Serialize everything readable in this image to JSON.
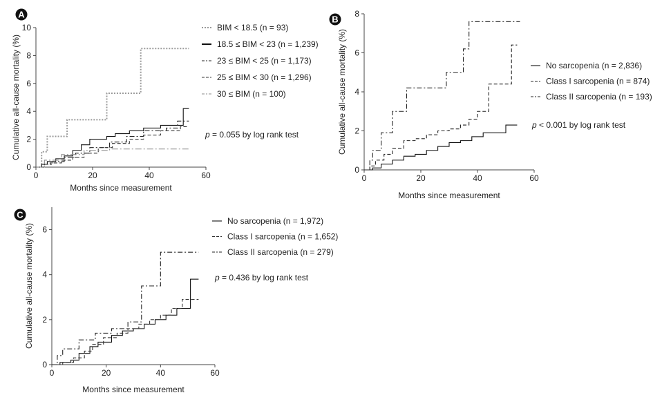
{
  "chart_data": [
    {
      "panel": "A",
      "type": "line",
      "subtype": "step (Kaplan-Meier cumulative incidence)",
      "xlabel": "Months since measurement",
      "ylabel": "Cumulative all-cause mortality (%)",
      "xlim": [
        0,
        60
      ],
      "ylim": [
        0,
        10
      ],
      "xticks": [
        0,
        20,
        40,
        60
      ],
      "yticks": [
        0,
        2,
        4,
        6,
        8,
        10
      ],
      "annotation": {
        "italic": "p",
        "text": " = 0.055 by log rank test"
      },
      "series": [
        {
          "name": "BIM < 18.5 (n = 93)",
          "style": "dotted",
          "color": "#9a9a9a",
          "x": [
            0,
            2,
            4,
            11,
            25,
            37,
            54
          ],
          "y": [
            0,
            1.1,
            2.2,
            3.4,
            5.3,
            8.5,
            8.5
          ]
        },
        {
          "name": "18.5 ≤ BIM < 23 (n = 1,239)",
          "style": "solid",
          "color": "#111111",
          "x": [
            0,
            2,
            4,
            7,
            10,
            13,
            16,
            19,
            25,
            28,
            33,
            38,
            44,
            52,
            54
          ],
          "y": [
            0,
            0.2,
            0.4,
            0.6,
            0.8,
            1.2,
            1.6,
            2.0,
            2.2,
            2.4,
            2.6,
            2.8,
            3.0,
            4.2,
            4.2
          ]
        },
        {
          "name": "23 ≤ BIM < 25 (n = 1,173)",
          "style": "dash-dot",
          "color": "#222222",
          "x": [
            0,
            3,
            6,
            10,
            14,
            19,
            26,
            32,
            38,
            46,
            50,
            54
          ],
          "y": [
            0,
            0.2,
            0.4,
            0.7,
            1.0,
            1.4,
            1.8,
            2.2,
            2.6,
            2.8,
            3.3,
            3.3
          ]
        },
        {
          "name": "25 ≤ BIM < 30 (n = 1,296)",
          "style": "dashed",
          "color": "#333333",
          "x": [
            0,
            2,
            5,
            9,
            13,
            17,
            22,
            27,
            33,
            38,
            44,
            51,
            54
          ],
          "y": [
            0,
            0.2,
            0.3,
            0.5,
            0.7,
            1.0,
            1.4,
            1.7,
            2.0,
            2.3,
            2.6,
            2.9,
            2.9
          ]
        },
        {
          "name": "30 ≤ BIM (n = 100)",
          "style": "long-dash-dot",
          "color": "#8a8a8a",
          "x": [
            0,
            3,
            9,
            17,
            26,
            37,
            54
          ],
          "y": [
            0,
            0.5,
            0.9,
            1.2,
            1.3,
            1.3,
            1.3
          ]
        }
      ]
    },
    {
      "panel": "B",
      "type": "line",
      "subtype": "step (Kaplan-Meier cumulative incidence)",
      "xlabel": "Months since measurement",
      "ylabel": "Cumulative all-cause mortality (%)",
      "xlim": [
        0,
        60
      ],
      "ylim": [
        0,
        8
      ],
      "xticks": [
        0,
        20,
        40,
        60
      ],
      "yticks": [
        0,
        2,
        4,
        6,
        8
      ],
      "annotation": {
        "italic": "p",
        "text": " < 0.001 by log rank test"
      },
      "series": [
        {
          "name": "No sarcopenia (n = 2,836)",
          "style": "solid",
          "color": "#111111",
          "x": [
            0,
            3,
            6,
            10,
            14,
            18,
            22,
            26,
            30,
            34,
            38,
            42,
            50,
            54
          ],
          "y": [
            0,
            0.1,
            0.3,
            0.5,
            0.7,
            0.8,
            1.0,
            1.2,
            1.4,
            1.5,
            1.7,
            1.9,
            2.3,
            2.3
          ]
        },
        {
          "name": "Class I sarcopenia (n = 874)",
          "style": "dashed",
          "color": "#222222",
          "x": [
            0,
            2,
            4,
            7,
            10,
            14,
            18,
            22,
            26,
            30,
            34,
            37,
            40,
            44,
            52,
            54
          ],
          "y": [
            0,
            0.2,
            0.5,
            0.8,
            1.1,
            1.5,
            1.6,
            1.8,
            2.0,
            2.1,
            2.3,
            2.6,
            3.0,
            4.4,
            6.4,
            6.4
          ]
        },
        {
          "name": "Class II sarcopenia (n = 193)",
          "style": "dash-dot",
          "color": "#222222",
          "x": [
            0,
            2,
            3,
            6,
            10,
            15,
            22,
            29,
            35,
            37,
            55
          ],
          "y": [
            0,
            0.5,
            1.0,
            1.9,
            3.0,
            4.2,
            4.2,
            5.0,
            6.2,
            7.6,
            7.6
          ]
        }
      ]
    },
    {
      "panel": "C",
      "type": "line",
      "subtype": "step (Kaplan-Meier cumulative incidence)",
      "xlabel": "Months since measurement",
      "ylabel": "Cumulative all-cause mortality (%)",
      "xlim": [
        0,
        60
      ],
      "ylim": [
        0,
        7
      ],
      "xticks": [
        0,
        20,
        40,
        60
      ],
      "yticks": [
        0,
        2,
        4,
        6
      ],
      "annotation": {
        "italic": "p",
        "text": " = 0.436 by log rank test"
      },
      "series": [
        {
          "name": "No sarcopenia (n = 1,972)",
          "style": "solid",
          "color": "#111111",
          "x": [
            0,
            3,
            7,
            10,
            14,
            17,
            22,
            26,
            30,
            34,
            38,
            42,
            46,
            51,
            54
          ],
          "y": [
            0,
            0.1,
            0.2,
            0.5,
            0.8,
            1.0,
            1.3,
            1.5,
            1.6,
            1.8,
            2.0,
            2.2,
            2.5,
            3.8,
            3.8
          ]
        },
        {
          "name": "Class I sarcopenia (n = 1,652)",
          "style": "dashed",
          "color": "#333333",
          "x": [
            0,
            4,
            8,
            12,
            15,
            19,
            24,
            28,
            32,
            36,
            40,
            44,
            48,
            54
          ],
          "y": [
            0,
            0.1,
            0.3,
            0.6,
            0.9,
            1.2,
            1.4,
            1.6,
            1.8,
            2.0,
            2.2,
            2.5,
            2.9,
            2.9
          ]
        },
        {
          "name": "Class II sarcopenia (n = 279)",
          "style": "dash-dot",
          "color": "#222222",
          "x": [
            0,
            2,
            4,
            10,
            16,
            22,
            28,
            33,
            40,
            54
          ],
          "y": [
            0,
            0.4,
            0.7,
            1.1,
            1.4,
            1.6,
            1.9,
            3.5,
            5.0,
            5.0
          ]
        }
      ]
    }
  ]
}
